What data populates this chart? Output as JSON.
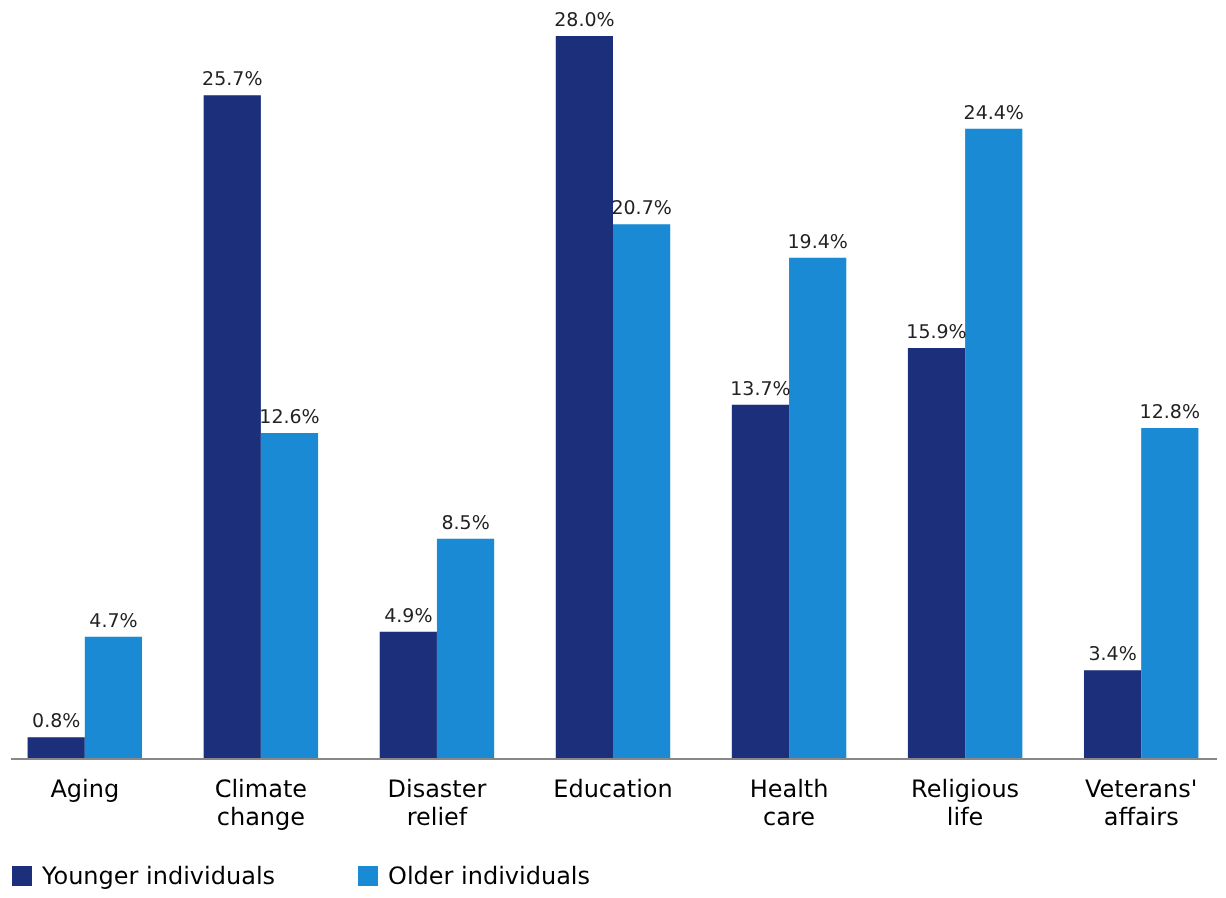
{
  "chart_data": {
    "type": "bar",
    "categories": [
      "Aging",
      "Climate change",
      "Disaster relief",
      "Education",
      "Health care",
      "Religious life",
      "Veterans' affairs"
    ],
    "series": [
      {
        "name": "Younger individuals",
        "color": "#1b2f7a",
        "values": [
          0.8,
          25.7,
          4.9,
          28.0,
          13.7,
          15.9,
          3.4
        ],
        "value_labels": [
          "0.8%",
          "25.7%",
          "4.9%",
          "28.0%",
          "13.7%",
          "15.9%",
          "3.4%"
        ]
      },
      {
        "name": "Older individuals",
        "color": "#1a8ad4",
        "values": [
          4.7,
          12.6,
          8.5,
          20.7,
          19.4,
          24.4,
          12.8
        ],
        "value_labels": [
          "4.7%",
          "12.6%",
          "8.5%",
          "20.7%",
          "19.4%",
          "24.4%",
          "12.8%"
        ]
      }
    ],
    "legend": "bottom",
    "grid": false,
    "tick_labels": "x"
  }
}
